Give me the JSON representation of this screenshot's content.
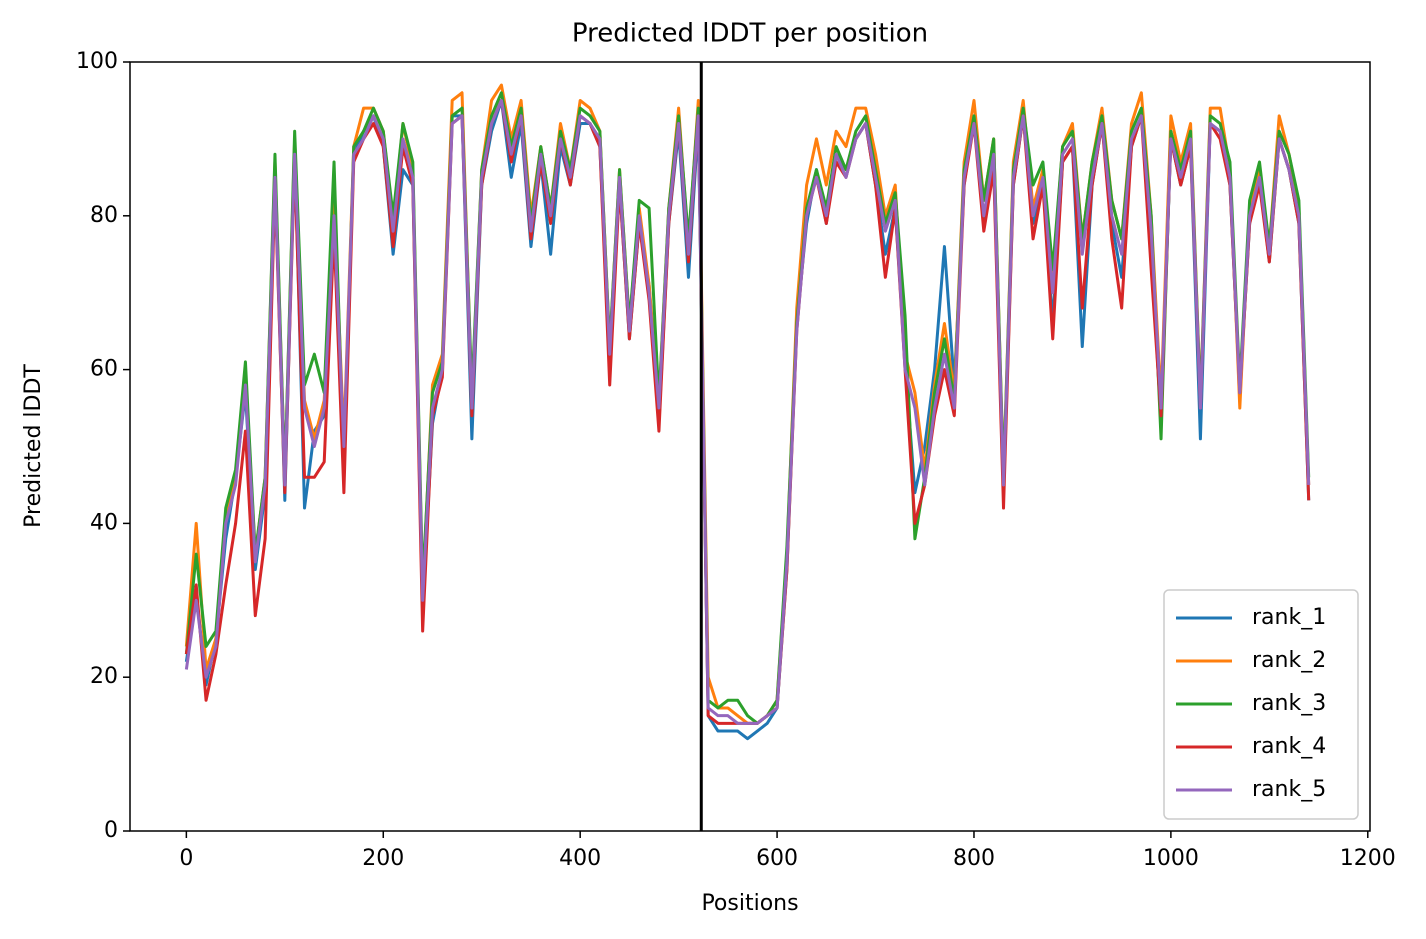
{
  "chart_data": {
    "type": "line",
    "title": "Predicted lDDT per position",
    "xlabel": "Positions",
    "ylabel": "Predicted lDDT",
    "x": [
      0,
      10,
      20,
      30,
      40,
      50,
      60,
      70,
      80,
      90,
      100,
      110,
      120,
      130,
      140,
      150,
      160,
      170,
      180,
      190,
      200,
      210,
      220,
      230,
      240,
      250,
      260,
      270,
      280,
      290,
      300,
      310,
      320,
      330,
      340,
      350,
      360,
      370,
      380,
      390,
      400,
      410,
      420,
      430,
      440,
      450,
      460,
      470,
      480,
      490,
      500,
      510,
      520,
      530,
      540,
      550,
      560,
      570,
      580,
      590,
      600,
      610,
      620,
      630,
      640,
      650,
      660,
      670,
      680,
      690,
      700,
      710,
      720,
      730,
      740,
      750,
      760,
      770,
      780,
      790,
      800,
      810,
      820,
      830,
      840,
      850,
      860,
      870,
      880,
      890,
      900,
      910,
      920,
      930,
      940,
      950,
      960,
      970,
      980,
      990,
      1000,
      1010,
      1020,
      1030,
      1040,
      1050,
      1060,
      1070,
      1080,
      1090,
      1100,
      1110,
      1120,
      1130,
      1140
    ],
    "series": [
      {
        "name": "rank_1",
        "color": "#1f77b4",
        "values": [
          22,
          31,
          19,
          25,
          38,
          46,
          57,
          34,
          44,
          86,
          43,
          89,
          42,
          52,
          54,
          81,
          48,
          88,
          91,
          93,
          89,
          75,
          86,
          84,
          29,
          53,
          60,
          93,
          93,
          51,
          84,
          91,
          95,
          85,
          92,
          76,
          87,
          75,
          89,
          84,
          92,
          92,
          89,
          61,
          84,
          64,
          79,
          71,
          53,
          79,
          91,
          72,
          92,
          15,
          13,
          13,
          13,
          12,
          13,
          14,
          16,
          34,
          66,
          79,
          86,
          79,
          88,
          86,
          90,
          92,
          84,
          75,
          81,
          61,
          44,
          50,
          60,
          76,
          58,
          84,
          93,
          79,
          87,
          44,
          84,
          93,
          79,
          85,
          66,
          87,
          89,
          63,
          84,
          92,
          79,
          72,
          89,
          93,
          76,
          53,
          90,
          84,
          89,
          51,
          92,
          91,
          84,
          57,
          79,
          85,
          74,
          90,
          86,
          79,
          43
        ]
      },
      {
        "name": "rank_2",
        "color": "#ff7f0e",
        "values": [
          24,
          40,
          21,
          25,
          41,
          46,
          59,
          36,
          46,
          87,
          46,
          90,
          56,
          51,
          56,
          82,
          51,
          89,
          94,
          94,
          91,
          79,
          92,
          86,
          31,
          58,
          62,
          95,
          96,
          56,
          86,
          95,
          97,
          90,
          95,
          80,
          89,
          81,
          92,
          86,
          95,
          94,
          91,
          63,
          86,
          66,
          81,
          71,
          56,
          81,
          94,
          76,
          95,
          20,
          16,
          16,
          15,
          14,
          14,
          15,
          17,
          36,
          68,
          84,
          90,
          84,
          91,
          89,
          94,
          94,
          88,
          80,
          84,
          62,
          57,
          47,
          58,
          66,
          57,
          87,
          95,
          82,
          90,
          46,
          87,
          95,
          81,
          86,
          72,
          89,
          92,
          77,
          87,
          94,
          82,
          77,
          92,
          96,
          80,
          56,
          93,
          87,
          92,
          56,
          94,
          94,
          86,
          55,
          81,
          86,
          76,
          93,
          88,
          81,
          45
        ]
      },
      {
        "name": "rank_3",
        "color": "#2ca02c",
        "values": [
          23,
          36,
          24,
          26,
          42,
          47,
          61,
          36,
          46,
          88,
          46,
          91,
          58,
          62,
          57,
          87,
          47,
          89,
          91,
          94,
          91,
          80,
          92,
          87,
          32,
          57,
          61,
          93,
          94,
          57,
          86,
          93,
          96,
          89,
          94,
          79,
          89,
          81,
          91,
          86,
          94,
          93,
          91,
          63,
          86,
          66,
          82,
          81,
          56,
          81,
          93,
          77,
          94,
          17,
          16,
          17,
          17,
          15,
          14,
          15,
          17,
          37,
          66,
          81,
          86,
          81,
          89,
          86,
          91,
          93,
          86,
          79,
          83,
          67,
          38,
          46,
          57,
          64,
          56,
          86,
          93,
          82,
          90,
          46,
          86,
          94,
          84,
          87,
          73,
          89,
          91,
          77,
          87,
          93,
          82,
          77,
          91,
          94,
          80,
          51,
          91,
          86,
          91,
          56,
          93,
          92,
          87,
          58,
          82,
          87,
          76,
          91,
          88,
          82,
          46
        ]
      },
      {
        "name": "rank_4",
        "color": "#d62728",
        "values": [
          23,
          32,
          17,
          23,
          32,
          40,
          52,
          28,
          38,
          84,
          44,
          87,
          46,
          46,
          48,
          78,
          44,
          87,
          90,
          92,
          89,
          76,
          89,
          84,
          26,
          54,
          59,
          92,
          93,
          54,
          84,
          92,
          95,
          87,
          93,
          77,
          87,
          79,
          90,
          84,
          93,
          92,
          89,
          58,
          84,
          64,
          79,
          69,
          52,
          79,
          92,
          74,
          93,
          15,
          14,
          14,
          14,
          14,
          14,
          15,
          16,
          34,
          65,
          80,
          85,
          79,
          87,
          85,
          90,
          92,
          84,
          72,
          81,
          60,
          40,
          45,
          54,
          60,
          54,
          84,
          92,
          78,
          86,
          42,
          84,
          93,
          77,
          84,
          64,
          87,
          89,
          68,
          84,
          92,
          77,
          68,
          89,
          93,
          73,
          54,
          90,
          84,
          89,
          55,
          92,
          90,
          84,
          57,
          79,
          84,
          74,
          90,
          86,
          79,
          43
        ]
      },
      {
        "name": "rank_5",
        "color": "#9467bd",
        "values": [
          21,
          30,
          20,
          24,
          40,
          45,
          58,
          35,
          45,
          85,
          45,
          88,
          55,
          50,
          55,
          80,
          50,
          88,
          90,
          93,
          90,
          78,
          90,
          85,
          30,
          55,
          60,
          92,
          93,
          55,
          85,
          92,
          95,
          88,
          93,
          78,
          88,
          80,
          90,
          85,
          93,
          92,
          90,
          62,
          85,
          65,
          80,
          70,
          55,
          80,
          92,
          75,
          93,
          16,
          15,
          15,
          14,
          14,
          14,
          15,
          16,
          35,
          65,
          80,
          85,
          80,
          88,
          85,
          90,
          92,
          85,
          78,
          82,
          60,
          55,
          45,
          55,
          62,
          55,
          85,
          92,
          80,
          88,
          45,
          85,
          93,
          80,
          85,
          70,
          88,
          90,
          75,
          85,
          92,
          80,
          75,
          90,
          93,
          78,
          55,
          90,
          85,
          90,
          55,
          92,
          91,
          85,
          57,
          80,
          85,
          75,
          90,
          86,
          80,
          45
        ]
      }
    ],
    "vline": 523,
    "xlim": [
      -57.25,
      1202.25
    ],
    "xticks": [
      0,
      200,
      400,
      600,
      800,
      1000,
      1200
    ],
    "ylim": [
      0,
      100
    ],
    "yticks": [
      0,
      20,
      40,
      60,
      80,
      100
    ],
    "legend": "lower right"
  }
}
